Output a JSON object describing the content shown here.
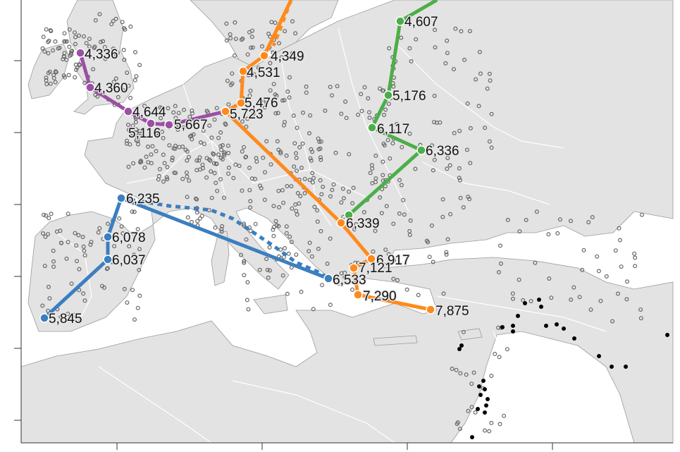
{
  "colors": {
    "sea": "#ffffff",
    "land": "#e3e3e3",
    "border": "#ffffff",
    "coast": "#9a9a9a",
    "frame": "#333333",
    "route_purple": "#9b4fa4",
    "route_orange": "#ff8a1c",
    "route_green": "#4cae48",
    "route_blue": "#3b7fbf",
    "site_open": "#666666",
    "site_dark": "#000000"
  },
  "routes": [
    {
      "id": "purple",
      "color_key": "route_purple",
      "nodes": [
        {
          "label": "4,336"
        },
        {
          "label": "4,360"
        },
        {
          "label": "4,644"
        },
        {
          "label": "5,116"
        },
        {
          "label": "5,667"
        },
        {
          "label": "5,723"
        }
      ]
    },
    {
      "id": "orange",
      "color_key": "route_orange",
      "nodes": [
        {
          "label": "4,349"
        },
        {
          "label": "4,531"
        },
        {
          "label": "5,476"
        },
        {
          "label": "5,723"
        },
        {
          "label": "6,339"
        },
        {
          "label": "6,917"
        },
        {
          "label": "7,121"
        },
        {
          "label": "7,290"
        },
        {
          "label": "7,875"
        }
      ]
    },
    {
      "id": "green",
      "color_key": "route_green",
      "nodes": [
        {
          "label": "4,607"
        },
        {
          "label": "5,176"
        },
        {
          "label": "6,117"
        },
        {
          "label": "6,336"
        },
        {
          "label": "6,339"
        }
      ]
    },
    {
      "id": "blue",
      "color_key": "route_blue",
      "nodes": [
        {
          "label": "5,845"
        },
        {
          "label": "6,037"
        },
        {
          "label": "6,078"
        },
        {
          "label": "6,235"
        },
        {
          "label": "6,533"
        }
      ]
    }
  ]
}
